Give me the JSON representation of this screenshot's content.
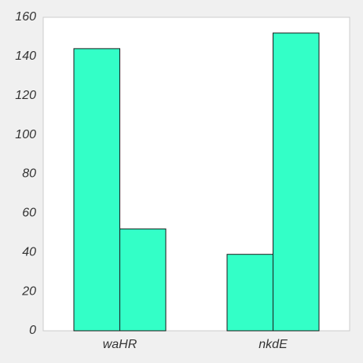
{
  "chart_data": {
    "type": "bar",
    "categories": [
      "waHR",
      "nkdE"
    ],
    "series": [
      {
        "values": [
          144,
          39
        ]
      },
      {
        "values": [
          52,
          152
        ]
      }
    ],
    "title": "",
    "xlabel": "",
    "ylabel": "",
    "ylim": [
      0,
      160
    ],
    "yticks": [
      "0",
      "20",
      "40",
      "60",
      "80",
      "100",
      "120",
      "140",
      "160"
    ],
    "grid": false,
    "legend": "none"
  },
  "colors": {
    "page_background": "#f0f0f0",
    "plot_background": "#ffffff",
    "bar_fill": "#33ffc7",
    "bar_stroke": "#1a1a1a",
    "axis_frame": "#cccccc",
    "tick_text": "#333333"
  }
}
